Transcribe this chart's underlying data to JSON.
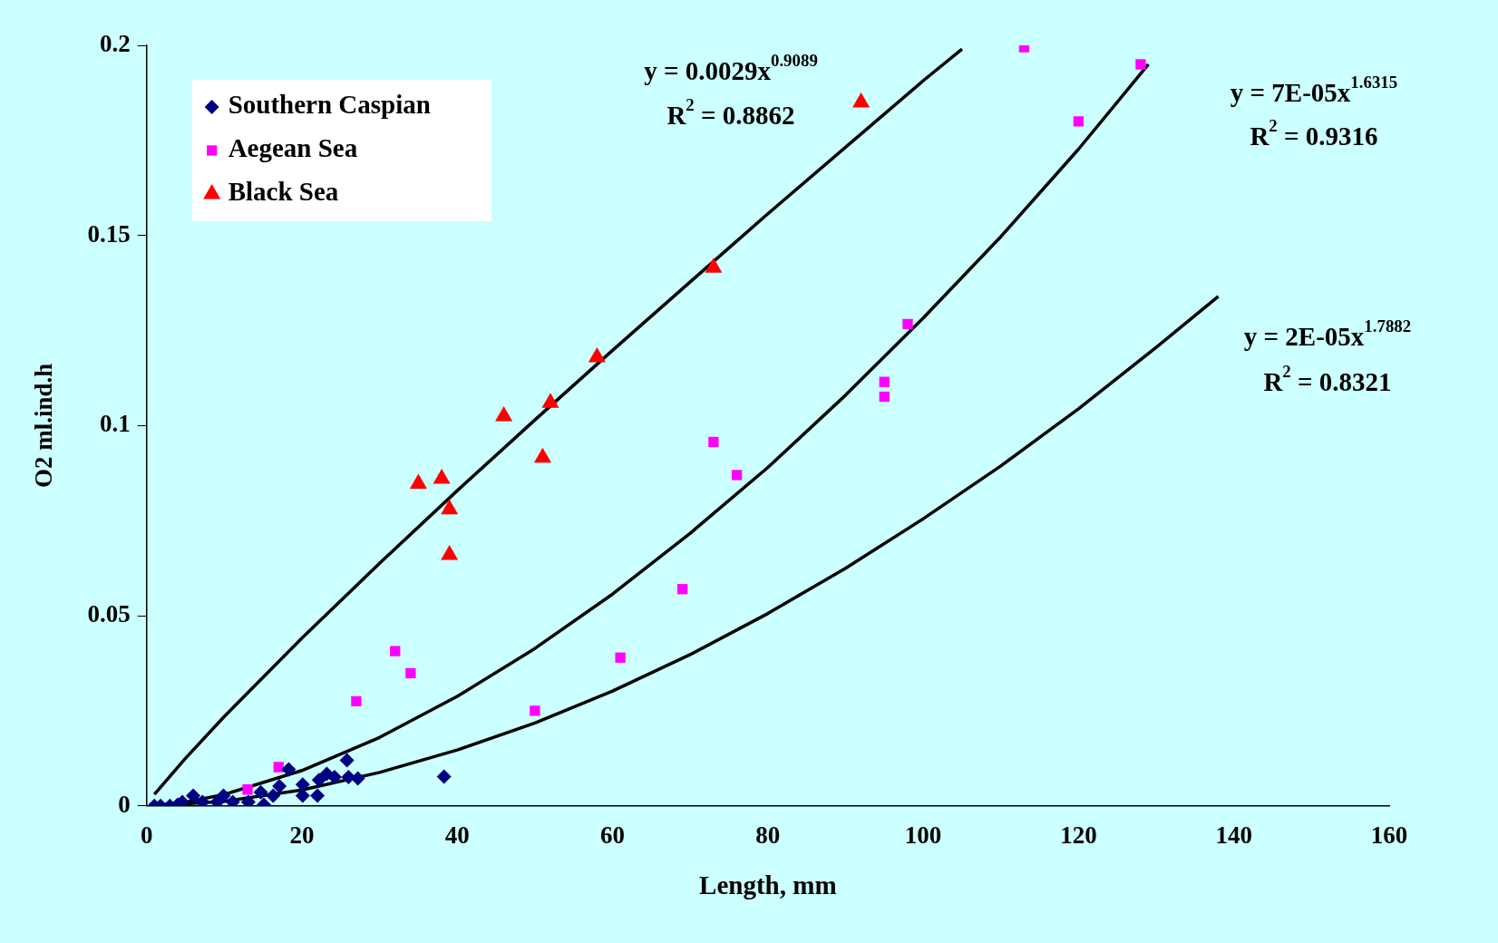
{
  "chart_data": {
    "type": "scatter",
    "xlabel": "Length, mm",
    "ylabel": "O2 ml.ind.h",
    "xlim": [
      0,
      160
    ],
    "xticks": [
      0,
      20,
      40,
      60,
      80,
      100,
      120,
      140,
      160
    ],
    "ylim": [
      0,
      0.2
    ],
    "yticks": [
      0,
      0.05,
      0.1,
      0.15,
      0.2
    ],
    "grid": false,
    "legend": "top left",
    "series": [
      {
        "name": "Southern Caspian",
        "color": "#000080",
        "marker": "diamond",
        "x": [
          1,
          1.8,
          3,
          4,
          4.6,
          6,
          7.2,
          9.1,
          9.9,
          11.1,
          13.1,
          14.7,
          15.1,
          16.3,
          17.1,
          18.3,
          20.1,
          20.1,
          22,
          22.2,
          23.2,
          24.2,
          25.8,
          26,
          27.2,
          38.3
        ],
        "values": [
          0,
          0,
          0,
          0.0003,
          0.001,
          0.0027,
          0.001,
          0.001,
          0.0027,
          0.001,
          0.001,
          0.0036,
          0.0003,
          0.0027,
          0.0052,
          0.0096,
          0.0056,
          0.0027,
          0.0027,
          0.0068,
          0.0084,
          0.0076,
          0.012,
          0.0076,
          0.0072,
          0.0077
        ]
      },
      {
        "name": "Aegean Sea",
        "color": "#ff00ff",
        "marker": "square",
        "x": [
          113,
          128,
          120,
          98,
          95,
          95,
          73,
          76,
          69,
          61,
          50,
          32,
          34,
          27,
          17,
          13
        ],
        "values": [
          0.1995,
          0.195,
          0.18,
          0.1267,
          0.1115,
          0.1076,
          0.0957,
          0.087,
          0.057,
          0.039,
          0.025,
          0.0407,
          0.0349,
          0.0275,
          0.0102,
          0.0043
        ]
      },
      {
        "name": "Black Sea",
        "color": "#ff0000",
        "marker": "triangle",
        "x": [
          92,
          73,
          58,
          46,
          52,
          51,
          35,
          38,
          39,
          39
        ],
        "values": [
          0.185,
          0.1415,
          0.118,
          0.1025,
          0.106,
          0.0916,
          0.0847,
          0.086,
          0.078,
          0.066
        ]
      },
      {
        "type": "line",
        "color": "#000000",
        "marker": "none",
        "x": [
          1,
          5,
          10,
          20,
          30,
          40,
          50,
          60,
          70,
          80,
          90,
          100,
          105
        ],
        "values": [
          0.003,
          0.0125,
          0.0235,
          0.0441,
          0.0638,
          0.0829,
          0.1015,
          0.1198,
          0.1378,
          0.1557,
          0.1732,
          0.1907,
          0.199
        ]
      },
      {
        "type": "line",
        "color": "#000000",
        "marker": "none",
        "x": [
          1,
          5,
          10,
          20,
          30,
          40,
          50,
          60,
          70,
          80,
          90,
          100,
          110,
          120,
          129
        ],
        "values": [
          0.0001,
          0.001,
          0.003,
          0.0093,
          0.018,
          0.0288,
          0.0414,
          0.0557,
          0.0717,
          0.089,
          0.108,
          0.1283,
          0.1497,
          0.1727,
          0.195
        ]
      },
      {
        "type": "line",
        "color": "#000000",
        "marker": "none",
        "x": [
          1,
          10,
          20,
          30,
          40,
          50,
          60,
          70,
          80,
          90,
          100,
          110,
          120,
          130,
          138
        ],
        "values": [
          0,
          0.0012,
          0.0042,
          0.0088,
          0.0147,
          0.0218,
          0.0302,
          0.0398,
          0.0506,
          0.0625,
          0.0755,
          0.0894,
          0.1044,
          0.1206,
          0.134
        ]
      }
    ],
    "annotations": [
      "y = 0.0029x$^{0.9089}$",
      "R$^{2}$ = 0.8862",
      "y = 7E-05x$^{1.6315}$",
      "R$^{2}$ = 0.9316",
      "y = 2E-05x$^{1.7882}$",
      "R$^{2}$ = 0.8321"
    ]
  }
}
